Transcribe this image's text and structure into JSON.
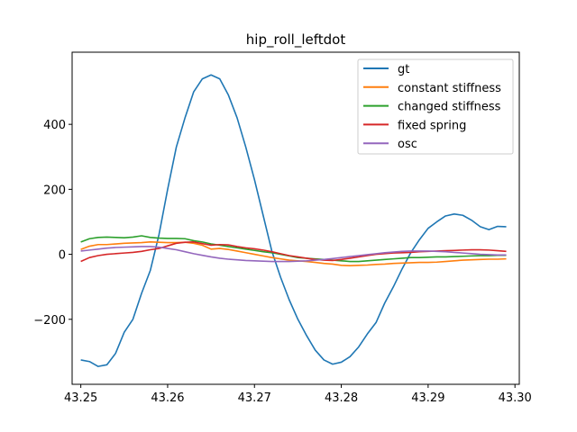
{
  "chart_data": {
    "type": "line",
    "title": "hip_roll_leftdot",
    "xlabel": "",
    "ylabel": "",
    "xlim": [
      43.249,
      43.3005
    ],
    "ylim": [
      -400,
      622
    ],
    "x_ticks": [
      43.25,
      43.26,
      43.27,
      43.28,
      43.29,
      43.3
    ],
    "x_tick_labels": [
      "43.25",
      "43.26",
      "43.27",
      "43.28",
      "43.29",
      "43.30"
    ],
    "y_ticks": [
      -200,
      0,
      200,
      400
    ],
    "y_tick_labels": [
      "−200",
      "0",
      "200",
      "400"
    ],
    "grid": false,
    "legend_position": "upper right",
    "series": [
      {
        "name": "gt",
        "color": "#1f77b4",
        "x": [
          43.25,
          43.251,
          43.252,
          43.253,
          43.254,
          43.255,
          43.256,
          43.257,
          43.258,
          43.259,
          43.26,
          43.261,
          43.262,
          43.263,
          43.264,
          43.265,
          43.266,
          43.267,
          43.268,
          43.269,
          43.27,
          43.271,
          43.272,
          43.273,
          43.274,
          43.275,
          43.276,
          43.277,
          43.278,
          43.279,
          43.28,
          43.281,
          43.282,
          43.283,
          43.284,
          43.285,
          43.286,
          43.287,
          43.288,
          43.289,
          43.29,
          43.291,
          43.292,
          43.293,
          43.294,
          43.295,
          43.296,
          43.297,
          43.298,
          43.299
        ],
        "y": [
          -325,
          -330,
          -345,
          -340,
          -305,
          -240,
          -200,
          -120,
          -50,
          60,
          200,
          330,
          420,
          500,
          540,
          552,
          540,
          490,
          420,
          330,
          230,
          120,
          10,
          -70,
          -140,
          -200,
          -250,
          -295,
          -325,
          -338,
          -332,
          -315,
          -285,
          -245,
          -210,
          -150,
          -100,
          -45,
          5,
          45,
          80,
          100,
          118,
          124,
          120,
          105,
          85,
          76,
          86,
          85
        ]
      },
      {
        "name": "constant stiffness",
        "color": "#ff7f0e",
        "x": [
          43.25,
          43.251,
          43.252,
          43.253,
          43.254,
          43.255,
          43.256,
          43.257,
          43.258,
          43.259,
          43.26,
          43.261,
          43.262,
          43.263,
          43.264,
          43.265,
          43.266,
          43.267,
          43.268,
          43.269,
          43.27,
          43.271,
          43.272,
          43.273,
          43.274,
          43.275,
          43.276,
          43.277,
          43.278,
          43.279,
          43.28,
          43.281,
          43.282,
          43.283,
          43.284,
          43.285,
          43.286,
          43.287,
          43.288,
          43.289,
          43.29,
          43.291,
          43.292,
          43.293,
          43.294,
          43.295,
          43.296,
          43.297,
          43.298,
          43.299
        ],
        "y": [
          15,
          25,
          30,
          30,
          32,
          34,
          35,
          36,
          38,
          37,
          36,
          36,
          37,
          34,
          28,
          16,
          18,
          15,
          10,
          5,
          0,
          -5,
          -10,
          -14,
          -18,
          -20,
          -22,
          -25,
          -28,
          -30,
          -34,
          -35,
          -34,
          -33,
          -31,
          -30,
          -28,
          -27,
          -26,
          -25,
          -25,
          -24,
          -22,
          -20,
          -18,
          -17,
          -16,
          -15,
          -15,
          -14
        ]
      },
      {
        "name": "changed stiffness",
        "color": "#2ca02c",
        "x": [
          43.25,
          43.251,
          43.252,
          43.253,
          43.254,
          43.255,
          43.256,
          43.257,
          43.258,
          43.259,
          43.26,
          43.261,
          43.262,
          43.263,
          43.264,
          43.265,
          43.266,
          43.267,
          43.268,
          43.269,
          43.27,
          43.271,
          43.272,
          43.273,
          43.274,
          43.275,
          43.276,
          43.277,
          43.278,
          43.279,
          43.28,
          43.281,
          43.282,
          43.283,
          43.284,
          43.285,
          43.286,
          43.287,
          43.288,
          43.289,
          43.29,
          43.291,
          43.292,
          43.293,
          43.294,
          43.295,
          43.296,
          43.297,
          43.298,
          43.299
        ],
        "y": [
          38,
          48,
          52,
          53,
          52,
          51,
          53,
          57,
          52,
          50,
          49,
          49,
          48,
          42,
          38,
          32,
          28,
          24,
          20,
          16,
          12,
          8,
          5,
          0,
          -5,
          -10,
          -12,
          -14,
          -16,
          -18,
          -20,
          -22,
          -22,
          -20,
          -18,
          -16,
          -14,
          -12,
          -10,
          -10,
          -9,
          -8,
          -8,
          -7,
          -6,
          -5,
          -4,
          -4,
          -3,
          -3
        ]
      },
      {
        "name": "fixed spring",
        "color": "#d62728",
        "x": [
          43.25,
          43.251,
          43.252,
          43.253,
          43.254,
          43.255,
          43.256,
          43.257,
          43.258,
          43.259,
          43.26,
          43.261,
          43.262,
          43.263,
          43.264,
          43.265,
          43.266,
          43.267,
          43.268,
          43.269,
          43.27,
          43.271,
          43.272,
          43.273,
          43.274,
          43.275,
          43.276,
          43.277,
          43.278,
          43.279,
          43.28,
          43.281,
          43.282,
          43.283,
          43.284,
          43.285,
          43.286,
          43.287,
          43.288,
          43.289,
          43.29,
          43.291,
          43.292,
          43.293,
          43.294,
          43.295,
          43.296,
          43.297,
          43.298,
          43.299
        ],
        "y": [
          -22,
          -10,
          -4,
          0,
          2,
          4,
          6,
          9,
          14,
          18,
          26,
          34,
          37,
          38,
          33,
          28,
          30,
          29,
          24,
          20,
          17,
          13,
          8,
          2,
          -4,
          -8,
          -12,
          -16,
          -18,
          -19,
          -16,
          -12,
          -8,
          -4,
          0,
          2,
          4,
          5,
          6,
          8,
          9,
          10,
          11,
          12,
          13,
          14,
          14,
          13,
          11,
          9
        ]
      },
      {
        "name": "osc",
        "color": "#9467bd",
        "x": [
          43.25,
          43.251,
          43.252,
          43.253,
          43.254,
          43.255,
          43.256,
          43.257,
          43.258,
          43.259,
          43.26,
          43.261,
          43.262,
          43.263,
          43.264,
          43.265,
          43.266,
          43.267,
          43.268,
          43.269,
          43.27,
          43.271,
          43.272,
          43.273,
          43.274,
          43.275,
          43.276,
          43.277,
          43.278,
          43.279,
          43.28,
          43.281,
          43.282,
          43.283,
          43.284,
          43.285,
          43.286,
          43.287,
          43.288,
          43.289,
          43.29,
          43.291,
          43.292,
          43.293,
          43.294,
          43.295,
          43.296,
          43.297,
          43.298,
          43.299
        ],
        "y": [
          10,
          13,
          16,
          19,
          21,
          22,
          23,
          24,
          24,
          22,
          18,
          14,
          8,
          2,
          -3,
          -8,
          -12,
          -15,
          -17,
          -19,
          -20,
          -21,
          -22,
          -22,
          -22,
          -21,
          -20,
          -18,
          -16,
          -13,
          -10,
          -7,
          -4,
          -1,
          2,
          5,
          7,
          9,
          10,
          10,
          10,
          9,
          8,
          6,
          4,
          2,
          0,
          -1,
          -2,
          -2
        ]
      }
    ]
  }
}
